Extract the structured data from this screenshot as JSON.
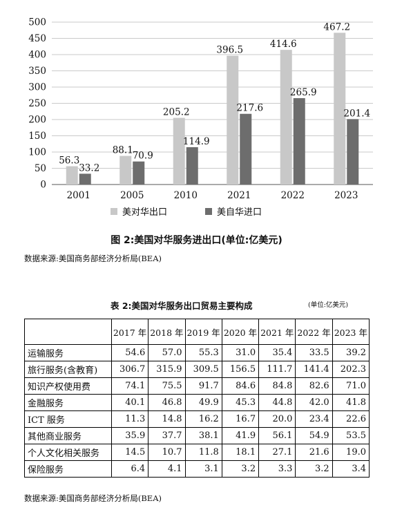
{
  "chart_data": {
    "type": "bar",
    "categories": [
      "2001",
      "2005",
      "2010",
      "2021",
      "2022",
      "2023"
    ],
    "series": [
      {
        "name": "美对华出口",
        "color": "#c8c8c8",
        "values": [
          56.3,
          88.1,
          205.2,
          396.5,
          414.6,
          467.2
        ]
      },
      {
        "name": "美自华进口",
        "color": "#6d6d6d",
        "values": [
          33.2,
          70.9,
          114.9,
          217.6,
          265.9,
          201.4
        ]
      }
    ],
    "ylim": [
      0,
      500
    ],
    "yticks": [
      "0",
      "50",
      "100",
      "150",
      "200",
      "250",
      "300",
      "350",
      "400",
      "450",
      "500"
    ],
    "grid": true,
    "legend": "bottom",
    "title": "图 2:美国对华服务进出口(单位:亿美元)"
  },
  "chart_source": "数据来源:美国商务部经济分析局(BEA)",
  "table": {
    "title": "表 2:美国对华服务出口贸易主要构成",
    "unit": "(单位:亿美元)",
    "headers": [
      "2017 年",
      "2018 年",
      "2019 年",
      "2020 年",
      "2021 年",
      "2022 年",
      "2023 年"
    ],
    "rows": [
      {
        "label": "运输服务",
        "values": [
          "54.6",
          "57.0",
          "55.3",
          "31.0",
          "35.4",
          "33.5",
          "39.2"
        ]
      },
      {
        "label": "旅行服务(含教育)",
        "values": [
          "306.7",
          "315.9",
          "309.5",
          "156.5",
          "111.7",
          "141.4",
          "202.3"
        ]
      },
      {
        "label": "知识产权使用费",
        "values": [
          "74.1",
          "75.5",
          "91.7",
          "84.6",
          "84.8",
          "82.6",
          "71.0"
        ]
      },
      {
        "label": "金融服务",
        "values": [
          "40.1",
          "46.8",
          "49.9",
          "45.3",
          "44.8",
          "42.0",
          "41.8"
        ]
      },
      {
        "label": "ICT 服务",
        "values": [
          "11.3",
          "14.8",
          "16.2",
          "16.7",
          "20.0",
          "23.4",
          "22.6"
        ]
      },
      {
        "label": "其他商业服务",
        "values": [
          "35.9",
          "37.7",
          "38.1",
          "41.9",
          "56.1",
          "54.9",
          "53.5"
        ]
      },
      {
        "label": "个人文化相关服务",
        "values": [
          "14.5",
          "10.7",
          "11.8",
          "18.1",
          "27.1",
          "21.6",
          "19.0"
        ]
      },
      {
        "label": "保险服务",
        "values": [
          "6.4",
          "4.1",
          "3.1",
          "3.2",
          "3.3",
          "3.2",
          "3.4"
        ]
      }
    ],
    "source": "数据来源:美国商务部经济分析局(BEA)"
  }
}
